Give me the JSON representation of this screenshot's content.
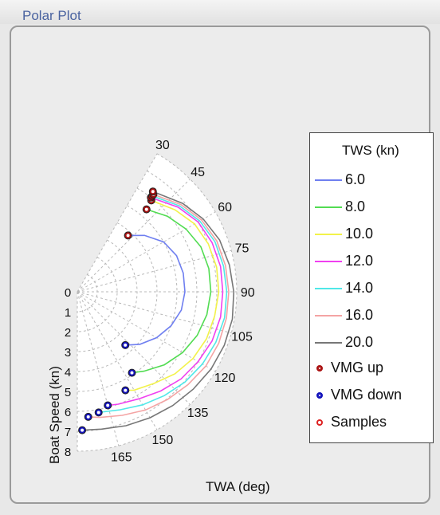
{
  "panel": {
    "title": "Polar Plot"
  },
  "chart_data": {
    "type": "polar-line",
    "title": "",
    "angle_label": "TWA (deg)",
    "radius_label": "Boat Speed (kn)",
    "angle_ticks": [
      30,
      45,
      60,
      75,
      90,
      105,
      120,
      135,
      150,
      165
    ],
    "radius_ticks": [
      0,
      1,
      2,
      3,
      4,
      5,
      6,
      7,
      8
    ],
    "angle_range": [
      30,
      180
    ],
    "radius_range": [
      0,
      8
    ],
    "legend_title": "TWS (kn)",
    "legend_placement": "right",
    "series": [
      {
        "name": "6.0",
        "color": "#6f7ff0",
        "twa": [
          42,
          50,
          60,
          70,
          80,
          90,
          100,
          110,
          120,
          130,
          138
        ],
        "speed": [
          3.8,
          4.4,
          5.0,
          5.3,
          5.4,
          5.4,
          5.3,
          5.0,
          4.6,
          4.1,
          3.6
        ]
      },
      {
        "name": "8.0",
        "color": "#52dc52",
        "twa": [
          40,
          50,
          60,
          70,
          80,
          90,
          100,
          110,
          120,
          130,
          140,
          146
        ],
        "speed": [
          5.4,
          5.9,
          6.3,
          6.6,
          6.7,
          6.7,
          6.6,
          6.4,
          6.1,
          5.7,
          5.2,
          4.9
        ]
      },
      {
        "name": "10.0",
        "color": "#f2f24a",
        "twa": [
          39,
          50,
          60,
          70,
          80,
          90,
          100,
          110,
          120,
          130,
          140,
          150,
          154
        ],
        "speed": [
          5.9,
          6.4,
          6.8,
          7.0,
          7.1,
          7.1,
          7.0,
          6.9,
          6.7,
          6.4,
          6.0,
          5.7,
          5.5
        ]
      },
      {
        "name": "12.0",
        "color": "#f040f0",
        "twa": [
          38,
          50,
          60,
          70,
          80,
          90,
          100,
          110,
          120,
          130,
          140,
          150,
          160,
          165
        ],
        "speed": [
          6.0,
          6.6,
          7.0,
          7.2,
          7.3,
          7.3,
          7.3,
          7.2,
          7.0,
          6.8,
          6.5,
          6.2,
          6.0,
          5.9
        ]
      },
      {
        "name": "14.0",
        "color": "#50e8e8",
        "twa": [
          38,
          50,
          60,
          70,
          80,
          90,
          100,
          110,
          120,
          130,
          140,
          150,
          160,
          170
        ],
        "speed": [
          6.1,
          6.7,
          7.1,
          7.35,
          7.45,
          7.5,
          7.5,
          7.4,
          7.25,
          7.05,
          6.8,
          6.55,
          6.3,
          6.15
        ]
      },
      {
        "name": "16.0",
        "color": "#f4a4a4",
        "twa": [
          38,
          50,
          60,
          70,
          80,
          90,
          100,
          110,
          120,
          130,
          140,
          150,
          160,
          170,
          175
        ],
        "speed": [
          6.2,
          6.8,
          7.2,
          7.45,
          7.55,
          7.6,
          7.6,
          7.55,
          7.45,
          7.25,
          7.05,
          6.85,
          6.6,
          6.4,
          6.3
        ]
      },
      {
        "name": "20.0",
        "color": "#777777",
        "twa": [
          37,
          50,
          60,
          70,
          80,
          90,
          100,
          110,
          120,
          130,
          140,
          150,
          160,
          170,
          178
        ],
        "speed": [
          6.3,
          6.9,
          7.3,
          7.6,
          7.75,
          7.85,
          7.9,
          7.85,
          7.75,
          7.6,
          7.45,
          7.3,
          7.15,
          7.0,
          6.95
        ]
      }
    ],
    "markers": [
      {
        "name": "VMG up",
        "color": "#aa1111",
        "style": "filled-ring",
        "points": [
          [
            42,
            3.8
          ],
          [
            40,
            5.4
          ],
          [
            39,
            5.9
          ],
          [
            38,
            6.0
          ],
          [
            38,
            6.1
          ],
          [
            38,
            6.2
          ],
          [
            37,
            6.3
          ]
        ]
      },
      {
        "name": "VMG down",
        "color": "#1111bb",
        "style": "filled-ring",
        "points": [
          [
            138,
            3.6
          ],
          [
            146,
            4.9
          ],
          [
            154,
            5.5
          ],
          [
            165,
            5.9
          ],
          [
            170,
            6.15
          ],
          [
            175,
            6.3
          ],
          [
            178,
            6.95
          ]
        ]
      },
      {
        "name": "Samples",
        "color": "#dd2222",
        "style": "ring",
        "points": []
      }
    ]
  }
}
